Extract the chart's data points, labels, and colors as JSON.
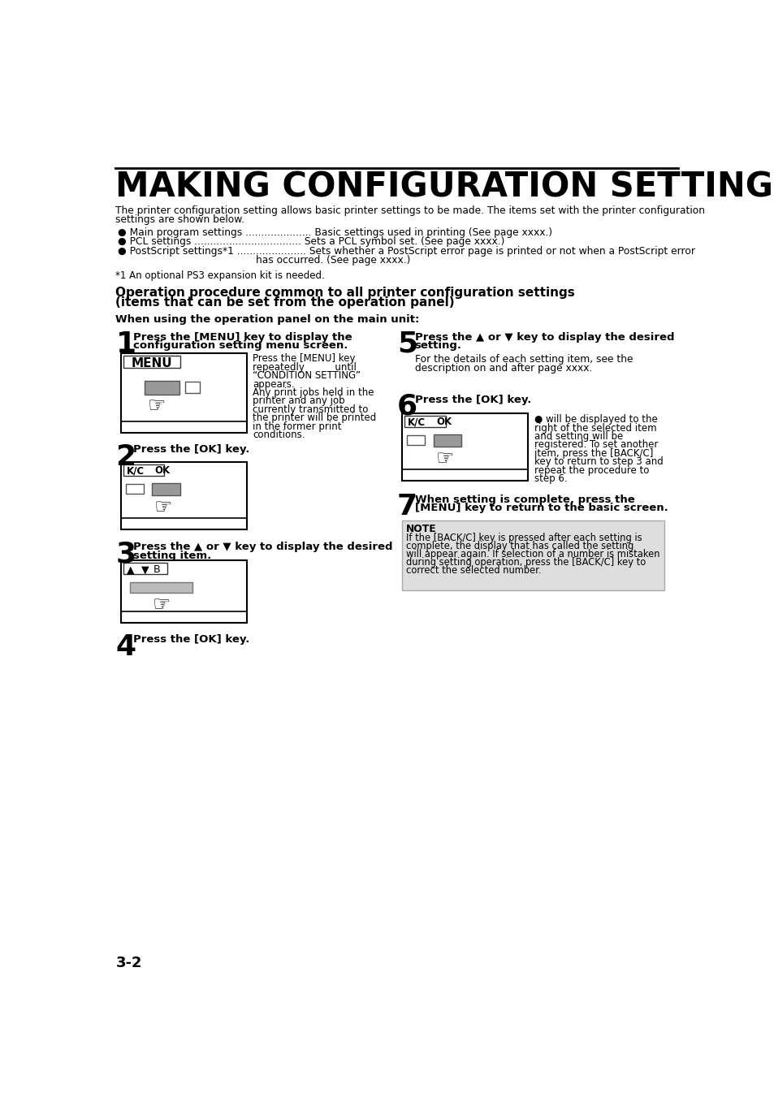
{
  "title": "MAKING CONFIGURATION SETTING",
  "bg_color": "#ffffff",
  "intro_line1": "The printer configuration setting allows basic printer settings to be made. The items set with the printer configuration",
  "intro_line2": "settings are shown below.",
  "bullet1": "● Main program settings ..................... Basic settings used in printing (See page xxxx.)",
  "bullet2": "● PCL settings .................................. Sets a PCL symbol set. (See page xxxx.)",
  "bullet3a": "● PostScript settings*1 ...................... Sets whether a PostScript error page is printed or not when a PostScript error",
  "bullet3b": "has occurred. (See page xxxx.)",
  "footnote": "*1 An optional PS3 expansion kit is needed.",
  "section_title1": "Operation procedure common to all printer configuration settings",
  "section_title2": "(items that can be set from the operation panel)",
  "subsection": "When using the operation panel on the main unit:",
  "step1_bold": "Press the [MENU] key to display the\nconfiguration setting menu screen.",
  "step1_desc_lines": [
    "Press the [MENU] key",
    "repeatedly          until",
    "“CONDITION SETTING”",
    "appears.",
    "Any print jobs held in the",
    "printer and any job",
    "currently transmitted to",
    "the printer will be printed",
    "in the former print",
    "conditions."
  ],
  "step2_bold": "Press the [OK] key.",
  "step3_bold": "Press the ▲ or ▼ key to display the desired\nsetting item.",
  "step4_bold": "Press the [OK] key.",
  "step5_bold": "Press the ▲ or ▼ key to display the desired\nsetting.",
  "step5_desc1": "For the details of each setting item, see the",
  "step5_desc2": "description on and after page xxxx.",
  "step6_bold": "Press the [OK] key.",
  "step6_desc_lines": [
    "● will be displayed to the",
    "right of the selected item",
    "and setting will be",
    "registered. To set another",
    "item, press the [BACK/C]",
    "key to return to step 3 and",
    "repeat the procedure to",
    "step 6."
  ],
  "step7_bold": "When setting is complete, press the\n[MENU] key to return to the basic screen.",
  "note_title": "NOTE",
  "note_lines": [
    "If the [BACK/C] key is pressed after each setting is",
    "complete, the display that has called the setting",
    "will appear again. If selection of a number is mistaken",
    "during setting operation, press the [BACK/C] key to",
    "correct the selected number."
  ],
  "page_number": "3-2",
  "note_bg": "#dedede",
  "gray_btn": "#999999",
  "light_gray_btn": "#bbbbbb"
}
